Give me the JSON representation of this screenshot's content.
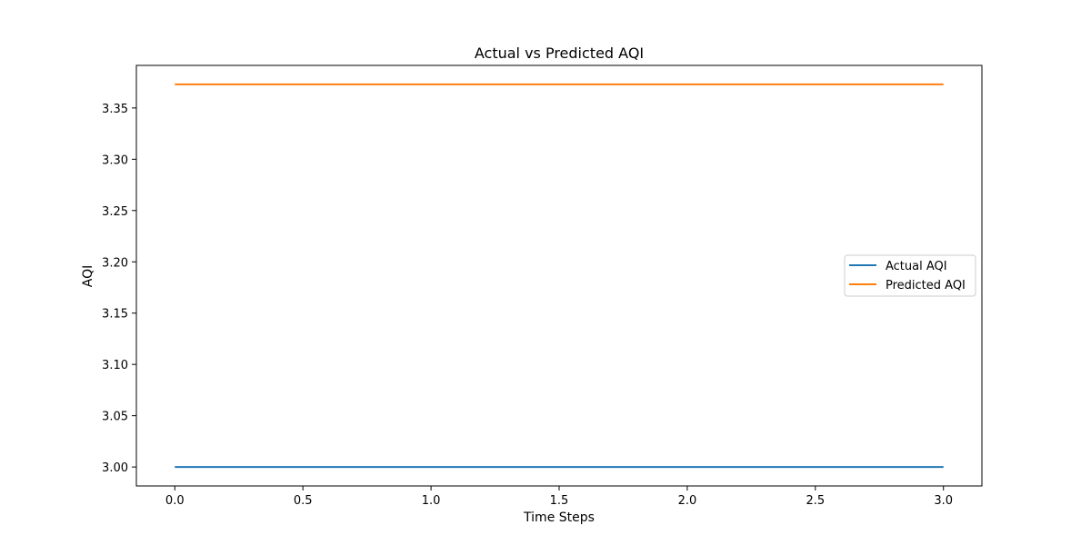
{
  "chart_data": {
    "type": "line",
    "title": "Actual vs Predicted AQI",
    "xlabel": "Time Steps",
    "ylabel": "AQI",
    "xlim": [
      -0.15,
      3.15
    ],
    "ylim": [
      2.9815,
      3.3915
    ],
    "x_ticks": [
      0.0,
      0.5,
      1.0,
      1.5,
      2.0,
      2.5,
      3.0
    ],
    "x_tick_labels": [
      "0.0",
      "0.5",
      "1.0",
      "1.5",
      "2.0",
      "2.5",
      "3.0"
    ],
    "y_ticks": [
      3.0,
      3.05,
      3.1,
      3.15,
      3.2,
      3.25,
      3.3,
      3.35
    ],
    "y_tick_labels": [
      "3.00",
      "3.05",
      "3.10",
      "3.15",
      "3.20",
      "3.25",
      "3.30",
      "3.35"
    ],
    "grid": false,
    "legend_position": "center-right",
    "series": [
      {
        "name": "Actual AQI",
        "color": "#1f77b4",
        "x": [
          0,
          1,
          2,
          3
        ],
        "values": [
          3.0,
          3.0,
          3.0,
          3.0
        ]
      },
      {
        "name": "Predicted AQI",
        "color": "#ff7f0e",
        "x": [
          0,
          1,
          2,
          3
        ],
        "values": [
          3.373,
          3.373,
          3.373,
          3.373
        ]
      }
    ]
  }
}
